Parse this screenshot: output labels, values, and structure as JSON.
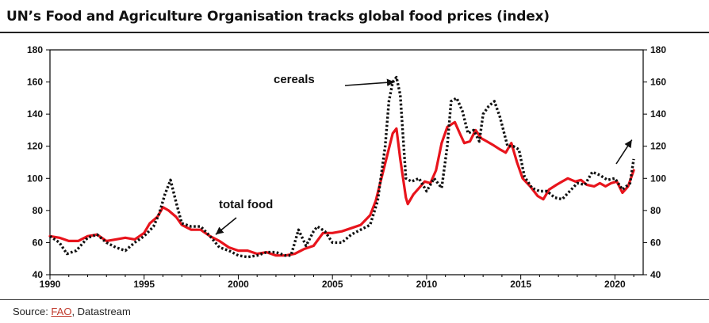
{
  "title": "UN’s Food and Agriculture Organisation tracks global food prices (index)",
  "source": {
    "prefix": "Source: ",
    "link": "FAO",
    "rest": ", Datastream"
  },
  "colors": {
    "total_food": "#e8141c",
    "cereals": "#111111",
    "axis": "#000000"
  },
  "chart_data": {
    "type": "line",
    "title": "UN’s Food and Agriculture Organisation tracks global food prices (index)",
    "xlim": [
      1990,
      2021.5
    ],
    "ylim": [
      40,
      180
    ],
    "x_ticks": [
      1990,
      1995,
      2000,
      2005,
      2010,
      2015,
      2020
    ],
    "y_ticks": [
      40,
      60,
      80,
      100,
      120,
      140,
      160,
      180
    ],
    "y_axis_right": true,
    "grid": false,
    "annotations": [
      {
        "text": "cereals",
        "arrow_to": [
          2008.3,
          160
        ]
      },
      {
        "text": "total food",
        "arrow_to": [
          1998.8,
          65
        ]
      },
      {
        "text": "",
        "arrow_to": [
          2020.9,
          124
        ]
      }
    ],
    "series": [
      {
        "name": "total food",
        "style": "solid",
        "x": [
          1990.0,
          1990.5,
          1991.0,
          1991.5,
          1992.0,
          1992.5,
          1993.0,
          1993.5,
          1994.0,
          1994.5,
          1995.0,
          1995.3,
          1995.7,
          1996.0,
          1996.3,
          1996.7,
          1997.0,
          1997.5,
          1998.0,
          1998.5,
          1999.0,
          1999.5,
          2000.0,
          2000.5,
          2001.0,
          2001.5,
          2002.0,
          2002.5,
          2003.0,
          2003.5,
          2004.0,
          2004.5,
          2005.0,
          2005.5,
          2006.0,
          2006.5,
          2007.0,
          2007.3,
          2007.6,
          2007.9,
          2008.2,
          2008.4,
          2008.6,
          2008.9,
          2009.0,
          2009.3,
          2009.6,
          2009.9,
          2010.2,
          2010.5,
          2010.8,
          2011.1,
          2011.5,
          2011.8,
          2012.0,
          2012.3,
          2012.6,
          2012.9,
          2013.2,
          2013.5,
          2013.9,
          2014.2,
          2014.5,
          2014.8,
          2015.1,
          2015.5,
          2015.9,
          2016.2,
          2016.5,
          2016.9,
          2017.2,
          2017.5,
          2017.9,
          2018.2,
          2018.5,
          2018.9,
          2019.2,
          2019.5,
          2019.8,
          2020.1,
          2020.4,
          2020.7,
          2021.0
        ],
        "y": [
          64,
          63,
          61,
          61,
          64,
          65,
          61,
          62,
          63,
          62,
          66,
          72,
          76,
          82,
          80,
          76,
          71,
          68,
          68,
          64,
          61,
          57,
          55,
          55,
          53,
          54,
          52,
          52,
          53,
          56,
          58,
          66,
          66,
          67,
          69,
          71,
          77,
          86,
          100,
          114,
          128,
          131,
          112,
          88,
          84,
          90,
          94,
          98,
          97,
          105,
          122,
          132,
          135,
          127,
          122,
          123,
          130,
          125,
          123,
          121,
          118,
          116,
          122,
          110,
          100,
          95,
          89,
          87,
          93,
          96,
          98,
          100,
          98,
          99,
          96,
          95,
          97,
          95,
          97,
          98,
          91,
          95,
          105
        ]
      },
      {
        "name": "cereals",
        "style": "dotted",
        "x": [
          1990.0,
          1990.5,
          1990.9,
          1991.4,
          1992.0,
          1992.5,
          1993.0,
          1993.5,
          1994.0,
          1994.5,
          1995.0,
          1995.5,
          1995.8,
          1996.1,
          1996.4,
          1996.7,
          1997.0,
          1997.5,
          1998.0,
          1998.5,
          1999.0,
          1999.5,
          2000.0,
          2000.5,
          2001.0,
          2001.5,
          2002.0,
          2002.5,
          2002.8,
          2003.2,
          2003.6,
          2004.0,
          2004.2,
          2004.6,
          2005.0,
          2005.5,
          2006.0,
          2006.5,
          2007.0,
          2007.4,
          2007.8,
          2008.0,
          2008.2,
          2008.4,
          2008.6,
          2008.9,
          2009.2,
          2009.6,
          2010.0,
          2010.4,
          2010.8,
          2011.1,
          2011.3,
          2011.6,
          2011.9,
          2012.2,
          2012.5,
          2012.8,
          2013.0,
          2013.3,
          2013.6,
          2013.9,
          2014.3,
          2014.6,
          2014.9,
          2015.2,
          2015.6,
          2016.0,
          2016.4,
          2016.8,
          2017.2,
          2017.6,
          2018.0,
          2018.4,
          2018.8,
          2019.2,
          2019.6,
          2020.0,
          2020.4,
          2020.8,
          2021.0
        ],
        "y": [
          64,
          60,
          53,
          55,
          63,
          65,
          60,
          57,
          55,
          60,
          64,
          70,
          78,
          90,
          99,
          85,
          72,
          70,
          70,
          64,
          57,
          55,
          52,
          51,
          52,
          54,
          54,
          52,
          52,
          68,
          58,
          67,
          70,
          67,
          60,
          60,
          65,
          68,
          71,
          86,
          120,
          148,
          160,
          163,
          152,
          100,
          98,
          100,
          92,
          100,
          94,
          120,
          148,
          150,
          142,
          128,
          130,
          123,
          140,
          145,
          148,
          138,
          120,
          120,
          118,
          101,
          94,
          92,
          92,
          88,
          87,
          92,
          97,
          96,
          104,
          102,
          99,
          100,
          93,
          97,
          112
        ]
      }
    ]
  }
}
